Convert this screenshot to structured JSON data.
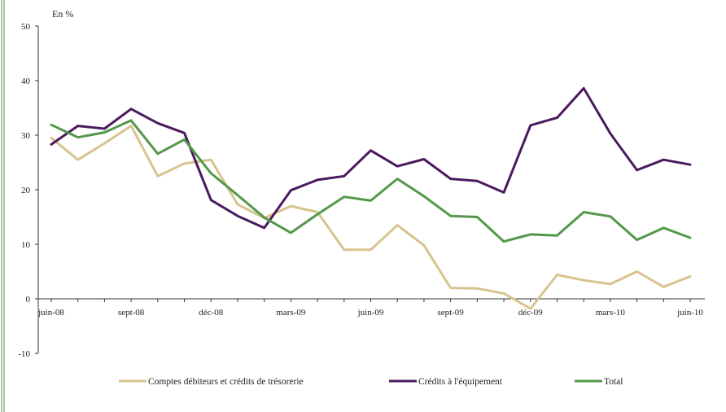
{
  "chart_data": {
    "type": "line",
    "unit_label": "En %",
    "ylim": [
      -10,
      50
    ],
    "yticks": [
      -10,
      0,
      10,
      20,
      30,
      40,
      50
    ],
    "x_tick_labels": [
      "juin-08",
      "sept-08",
      "déc-08",
      "mars-09",
      "juin-09",
      "sept-09",
      "déc-09",
      "mars-10",
      "juin-10"
    ],
    "x_tick_index": [
      0,
      3,
      6,
      9,
      12,
      15,
      18,
      21,
      24
    ],
    "n_points": 25,
    "grid": false,
    "legend_position": "bottom",
    "series": [
      {
        "name": "Comptes débiteurs et crédits de trésorerie",
        "color": "#D6C48E",
        "values": [
          29.5,
          25.5,
          28.5,
          31.7,
          22.5,
          24.8,
          25.5,
          17.3,
          14.8,
          17.0,
          15.9,
          9.0,
          9.0,
          13.5,
          9.8,
          2.0,
          1.9,
          1.0,
          -1.8,
          4.4,
          3.4,
          2.7,
          5.0,
          2.2,
          4.1
        ]
      },
      {
        "name": "Crédits à l'équipement",
        "color": "#4B1A5E",
        "values": [
          28.3,
          31.7,
          31.2,
          34.8,
          32.2,
          30.4,
          18.1,
          15.2,
          13.0,
          19.9,
          21.8,
          22.5,
          27.2,
          24.3,
          25.6,
          22.0,
          21.6,
          19.5,
          31.8,
          33.2,
          38.6,
          30.3,
          23.6,
          25.5,
          24.6
        ]
      },
      {
        "name": "Total",
        "color": "#53984A",
        "values": [
          31.9,
          29.6,
          30.5,
          32.7,
          26.6,
          29.2,
          23.0,
          19.0,
          14.9,
          12.1,
          15.5,
          18.7,
          18.0,
          22.0,
          18.8,
          15.2,
          15.0,
          10.5,
          11.8,
          11.6,
          15.9,
          15.1,
          10.8,
          13.0,
          11.2
        ]
      }
    ]
  }
}
